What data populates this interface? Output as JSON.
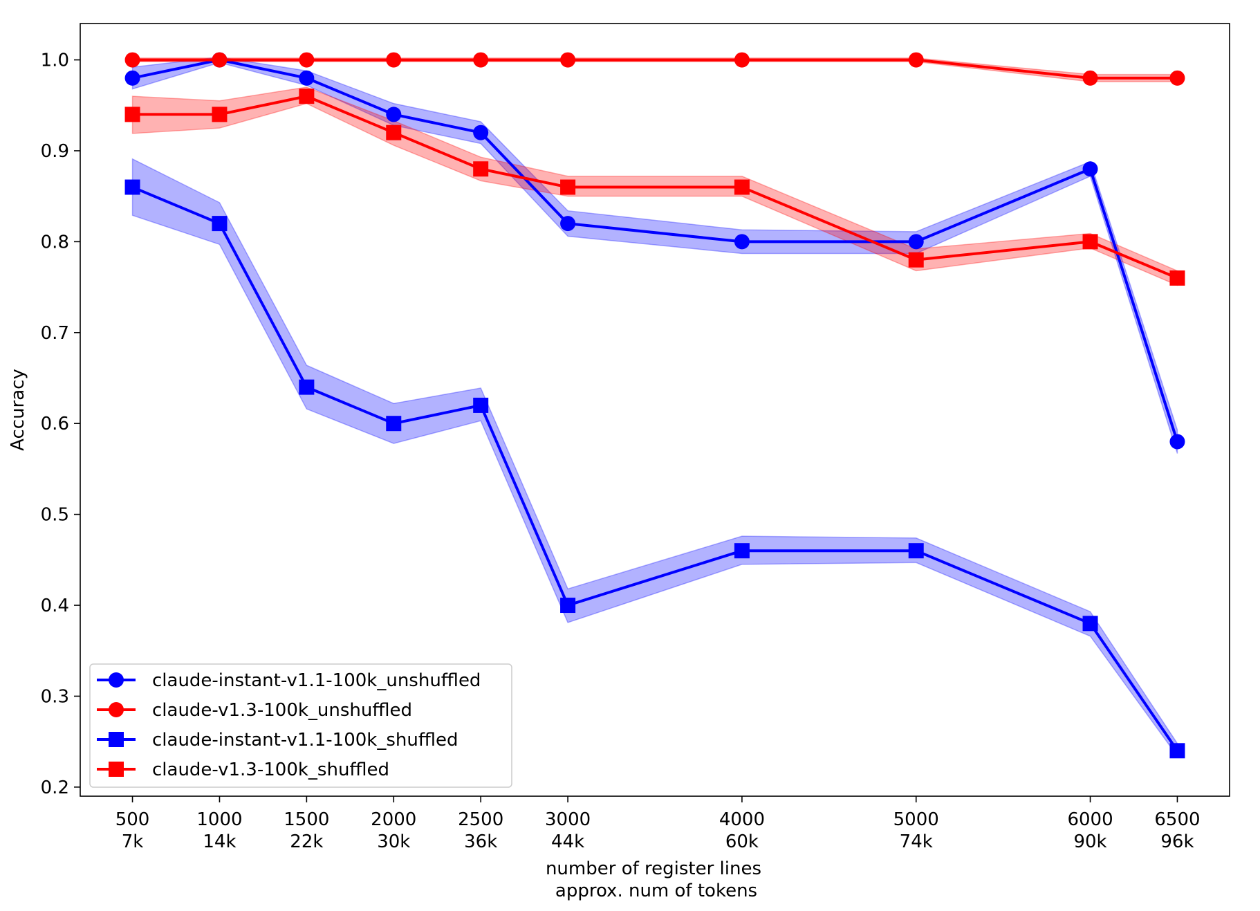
{
  "chart_data": {
    "type": "line",
    "title": "",
    "xlabel": "number of register lines",
    "xlabel2": "approx. num of tokens",
    "ylabel": "Accuracy",
    "x": [
      500,
      1000,
      1500,
      2000,
      2500,
      3000,
      4000,
      5000,
      6000,
      6500
    ],
    "xtick_labels": [
      "500",
      "1000",
      "1500",
      "2000",
      "2500",
      "3000",
      "4000",
      "5000",
      "6000",
      "6500"
    ],
    "xtick_sublabels": [
      "7k",
      "14k",
      "22k",
      "30k",
      "36k",
      "44k",
      "60k",
      "74k",
      "90k",
      "96k"
    ],
    "xlim": [
      200,
      6800
    ],
    "ylim": [
      0.19,
      1.04
    ],
    "yticks": [
      0.2,
      0.3,
      0.4,
      0.5,
      0.6,
      0.7,
      0.8,
      0.9,
      1.0
    ],
    "ytick_labels": [
      "0.2",
      "0.3",
      "0.4",
      "0.5",
      "0.6",
      "0.7",
      "0.8",
      "0.9",
      "1.0"
    ],
    "grid": false,
    "legend_position": "lower-left",
    "series": [
      {
        "name": "claude-instant-v1.1-100k_unshuffled",
        "color": "#0000ff",
        "band_color": "#0000ff",
        "marker": "circle",
        "values": [
          0.98,
          1.0,
          0.98,
          0.94,
          0.92,
          0.82,
          0.8,
          0.8,
          0.88,
          0.58
        ],
        "lower": [
          0.968,
          0.997,
          0.972,
          0.928,
          0.908,
          0.806,
          0.787,
          0.787,
          0.872,
          0.567
        ],
        "upper": [
          0.992,
          1.003,
          0.988,
          0.952,
          0.932,
          0.834,
          0.813,
          0.811,
          0.888,
          0.593
        ]
      },
      {
        "name": "claude-v1.3-100k_unshuffled",
        "color": "#ff0000",
        "band_color": "#ff0000",
        "marker": "circle",
        "values": [
          1.0,
          1.0,
          1.0,
          1.0,
          1.0,
          1.0,
          1.0,
          1.0,
          0.98,
          0.98
        ],
        "lower": [
          0.998,
          0.998,
          0.998,
          0.998,
          0.998,
          0.998,
          0.998,
          0.998,
          0.976,
          0.976
        ],
        "upper": [
          1.002,
          1.002,
          1.002,
          1.002,
          1.002,
          1.002,
          1.002,
          1.002,
          0.984,
          0.984
        ]
      },
      {
        "name": "claude-instant-v1.1-100k_shuffled",
        "color": "#0000ff",
        "band_color": "#0000ff",
        "marker": "square",
        "values": [
          0.86,
          0.82,
          0.64,
          0.6,
          0.62,
          0.4,
          0.46,
          0.46,
          0.38,
          0.24
        ],
        "lower": [
          0.829,
          0.797,
          0.616,
          0.578,
          0.603,
          0.381,
          0.445,
          0.447,
          0.366,
          0.234
        ],
        "upper": [
          0.891,
          0.843,
          0.664,
          0.622,
          0.639,
          0.418,
          0.476,
          0.474,
          0.393,
          0.248
        ]
      },
      {
        "name": "claude-v1.3-100k_shuffled",
        "color": "#ff0000",
        "band_color": "#ff0000",
        "marker": "square",
        "values": [
          0.94,
          0.94,
          0.96,
          0.92,
          0.88,
          0.86,
          0.86,
          0.78,
          0.8,
          0.76
        ],
        "lower": [
          0.919,
          0.925,
          0.952,
          0.906,
          0.867,
          0.85,
          0.85,
          0.768,
          0.793,
          0.752
        ],
        "upper": [
          0.96,
          0.955,
          0.97,
          0.933,
          0.893,
          0.872,
          0.872,
          0.792,
          0.809,
          0.768
        ]
      }
    ]
  }
}
